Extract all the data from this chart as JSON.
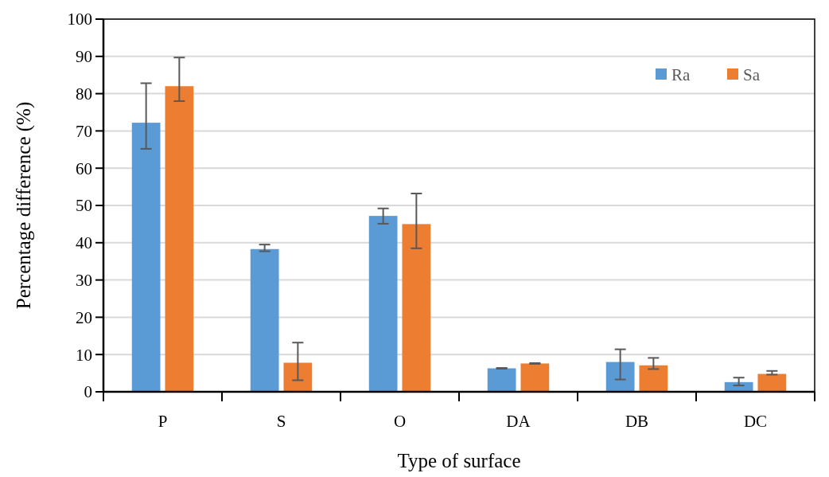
{
  "chart_data": {
    "type": "bar",
    "xlabel": "Type of surface",
    "ylabel": "Percentage difference (%)",
    "categories": [
      "P",
      "S",
      "O",
      "DA",
      "DB",
      "DC"
    ],
    "series": [
      {
        "name": "Ra",
        "color": "#5b9bd5",
        "values": [
          72.2,
          38.3,
          47.2,
          6.3,
          8.0,
          2.6
        ],
        "errors": [
          [
            65.2,
            82.8
          ],
          [
            37.7,
            39.5
          ],
          [
            45.1,
            49.2
          ],
          [
            6.2,
            6.4
          ],
          [
            3.3,
            11.4
          ],
          [
            1.7,
            3.8
          ]
        ]
      },
      {
        "name": "Sa",
        "color": "#ed7d31",
        "values": [
          82.0,
          7.8,
          45.0,
          7.6,
          7.1,
          4.8
        ],
        "errors": [
          [
            78.0,
            89.7
          ],
          [
            3.1,
            13.2
          ],
          [
            38.5,
            53.2
          ],
          [
            7.5,
            7.7
          ],
          [
            6.1,
            9.1
          ],
          [
            4.6,
            5.6
          ]
        ]
      }
    ],
    "ylim": [
      0,
      100
    ],
    "yticks": [
      0,
      10,
      20,
      30,
      40,
      50,
      60,
      70,
      80,
      90,
      100
    ],
    "grid": "y",
    "legend": "top right"
  }
}
